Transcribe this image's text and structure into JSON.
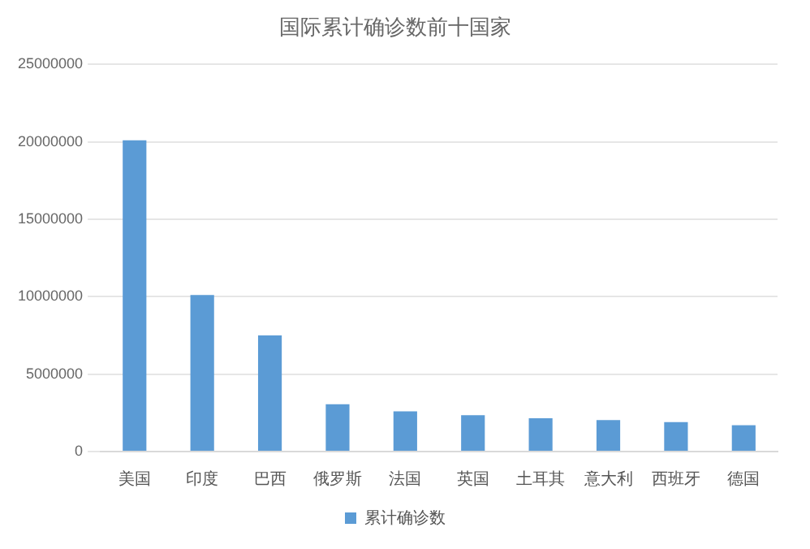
{
  "chart_data": {
    "type": "bar",
    "title": "国际累计确诊数前十国家",
    "categories": [
      "美国",
      "印度",
      "巴西",
      "俄罗斯",
      "法国",
      "英国",
      "土耳其",
      "意大利",
      "西班牙",
      "德国"
    ],
    "series": [
      {
        "name": "累计确诊数",
        "color": "#5b9bd5",
        "values": [
          20100000,
          10100000,
          7500000,
          3050000,
          2600000,
          2350000,
          2150000,
          2030000,
          1900000,
          1700000
        ]
      }
    ],
    "ylim": [
      0,
      25000000
    ],
    "yticks": [
      0,
      5000000,
      10000000,
      15000000,
      20000000,
      25000000
    ],
    "grid": "y",
    "legend": "bottom"
  }
}
